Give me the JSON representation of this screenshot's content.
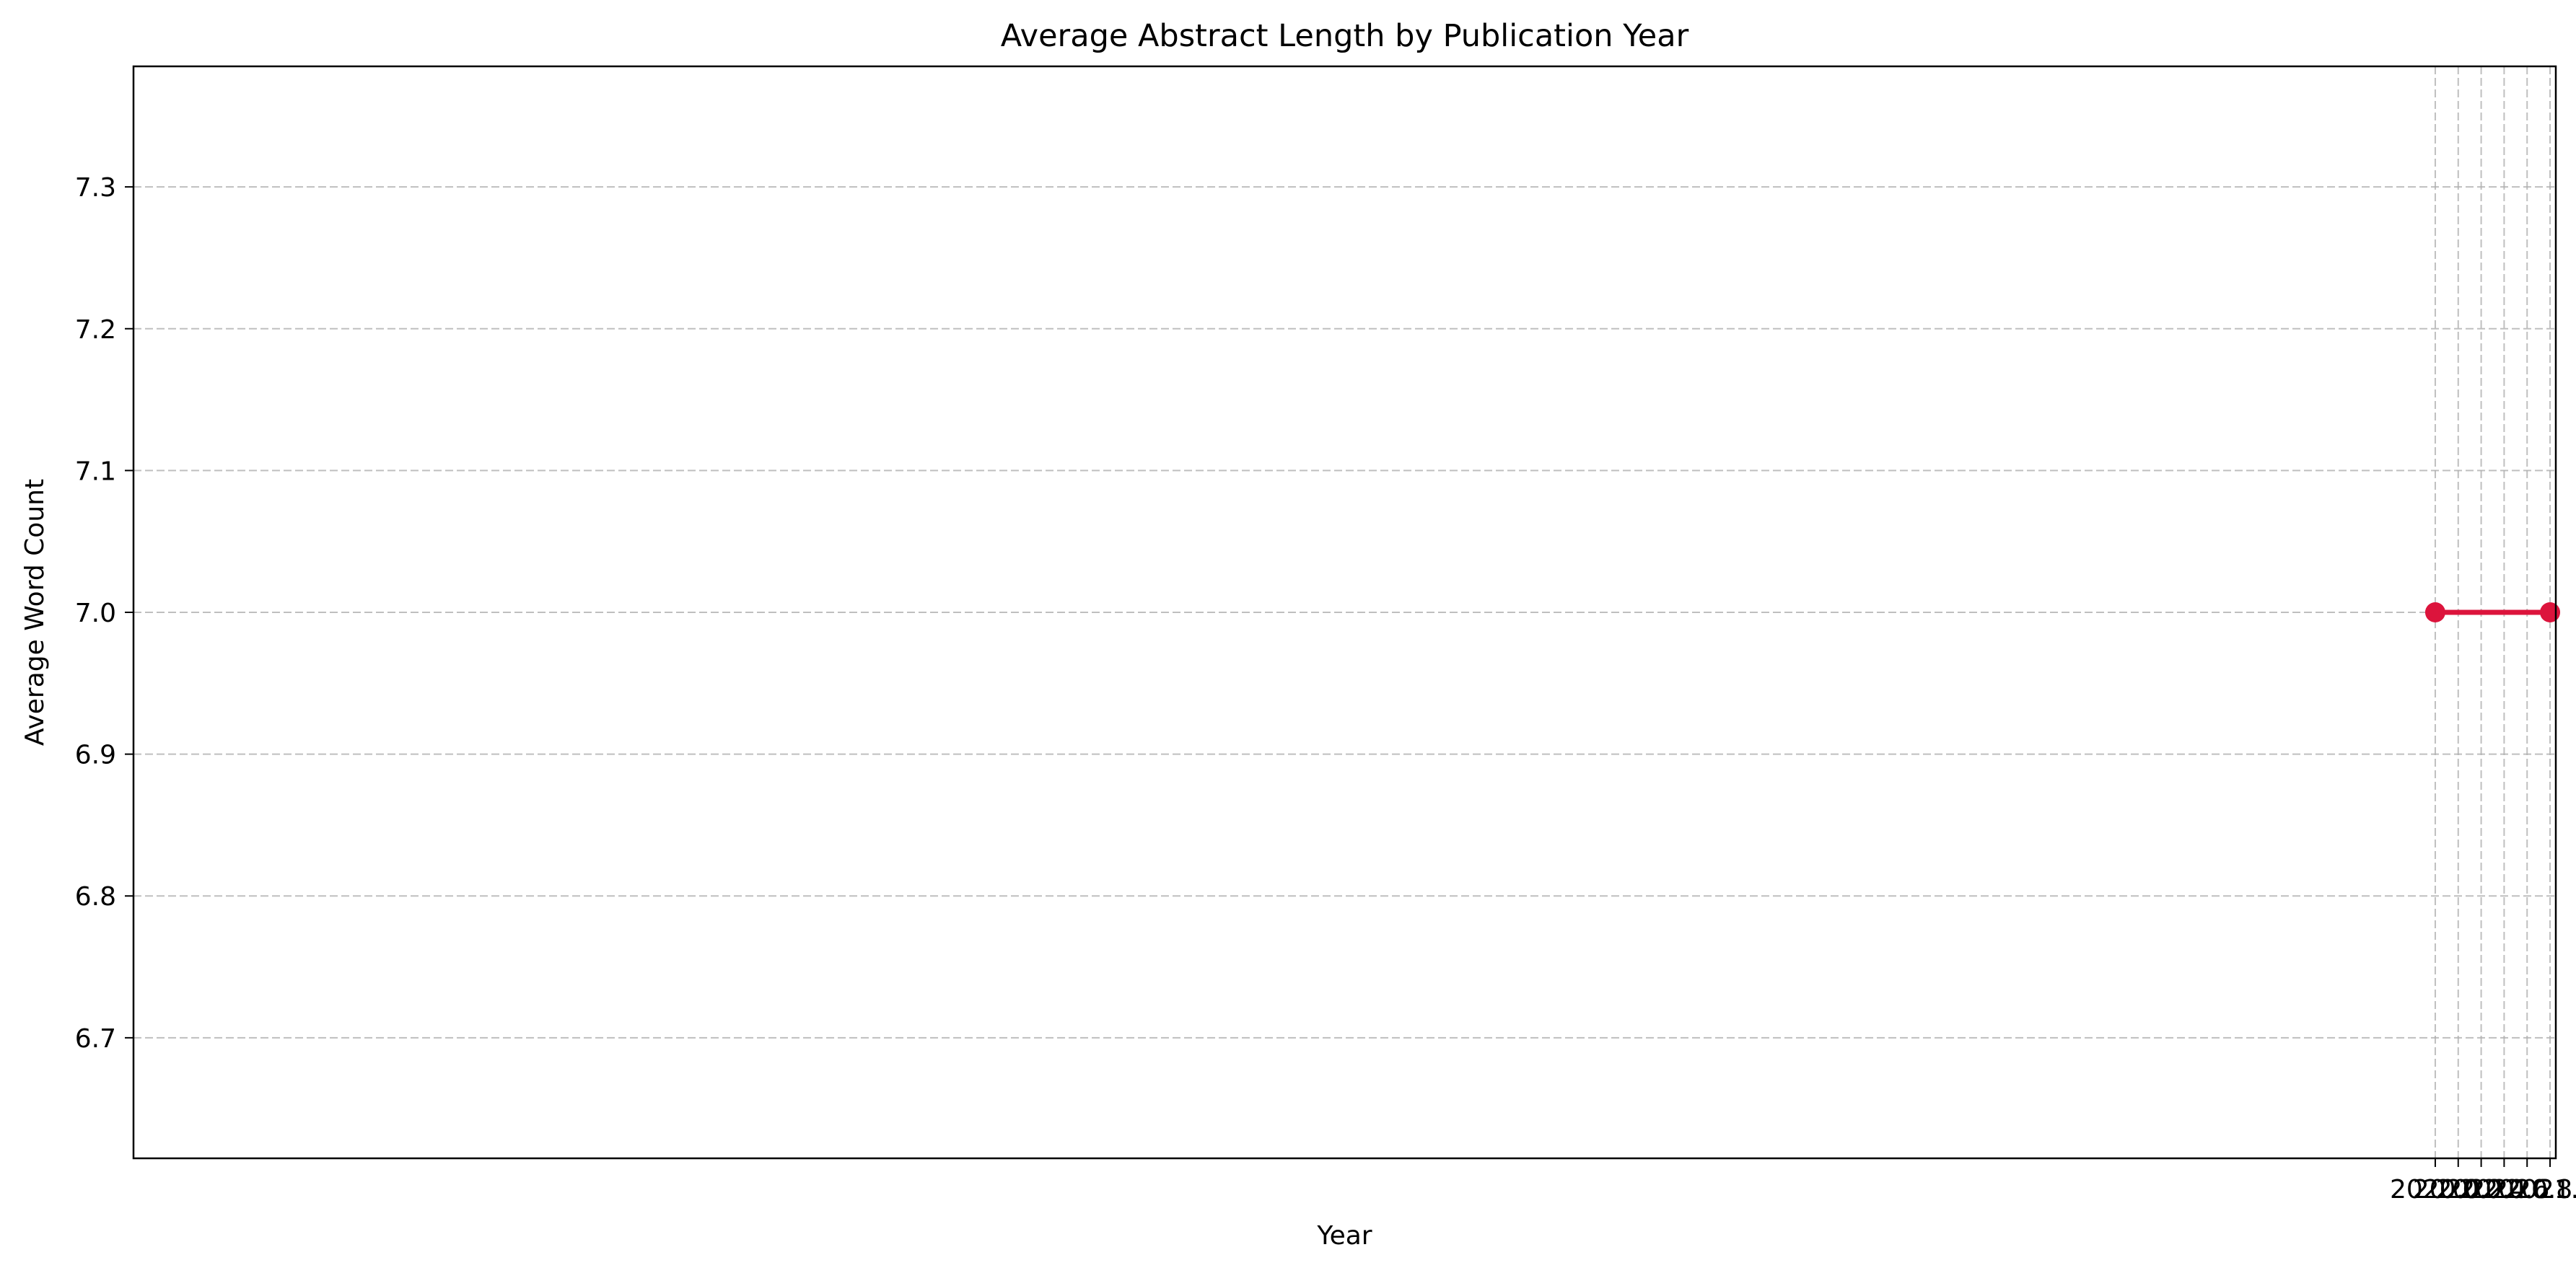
{
  "chart_data": {
    "type": "line",
    "title": "Average Abstract Length by Publication Year",
    "xlabel": "Year",
    "ylabel": "Average Word Count",
    "xlim": [
      1999.95,
      2021.05
    ],
    "ylim": [
      6.615,
      7.385
    ],
    "xticks": [
      2020.0,
      2020.2,
      2020.4,
      2020.6,
      2020.8,
      2021.0
    ],
    "xtick_labels": [
      "2020.0",
      "2020.2",
      "2020.4",
      "2020.6",
      "2020.8",
      "2021.0"
    ],
    "yticks": [
      6.7,
      6.8,
      6.9,
      7.0,
      7.1,
      7.2,
      7.3
    ],
    "ytick_labels": [
      "6.7",
      "6.8",
      "6.9",
      "7.0",
      "7.1",
      "7.2",
      "7.3"
    ],
    "grid": true,
    "series": [
      {
        "x": [
          2020,
          2021
        ],
        "y": [
          7.0,
          7.0
        ],
        "color": "#dc143c",
        "marker": "circle"
      }
    ]
  }
}
